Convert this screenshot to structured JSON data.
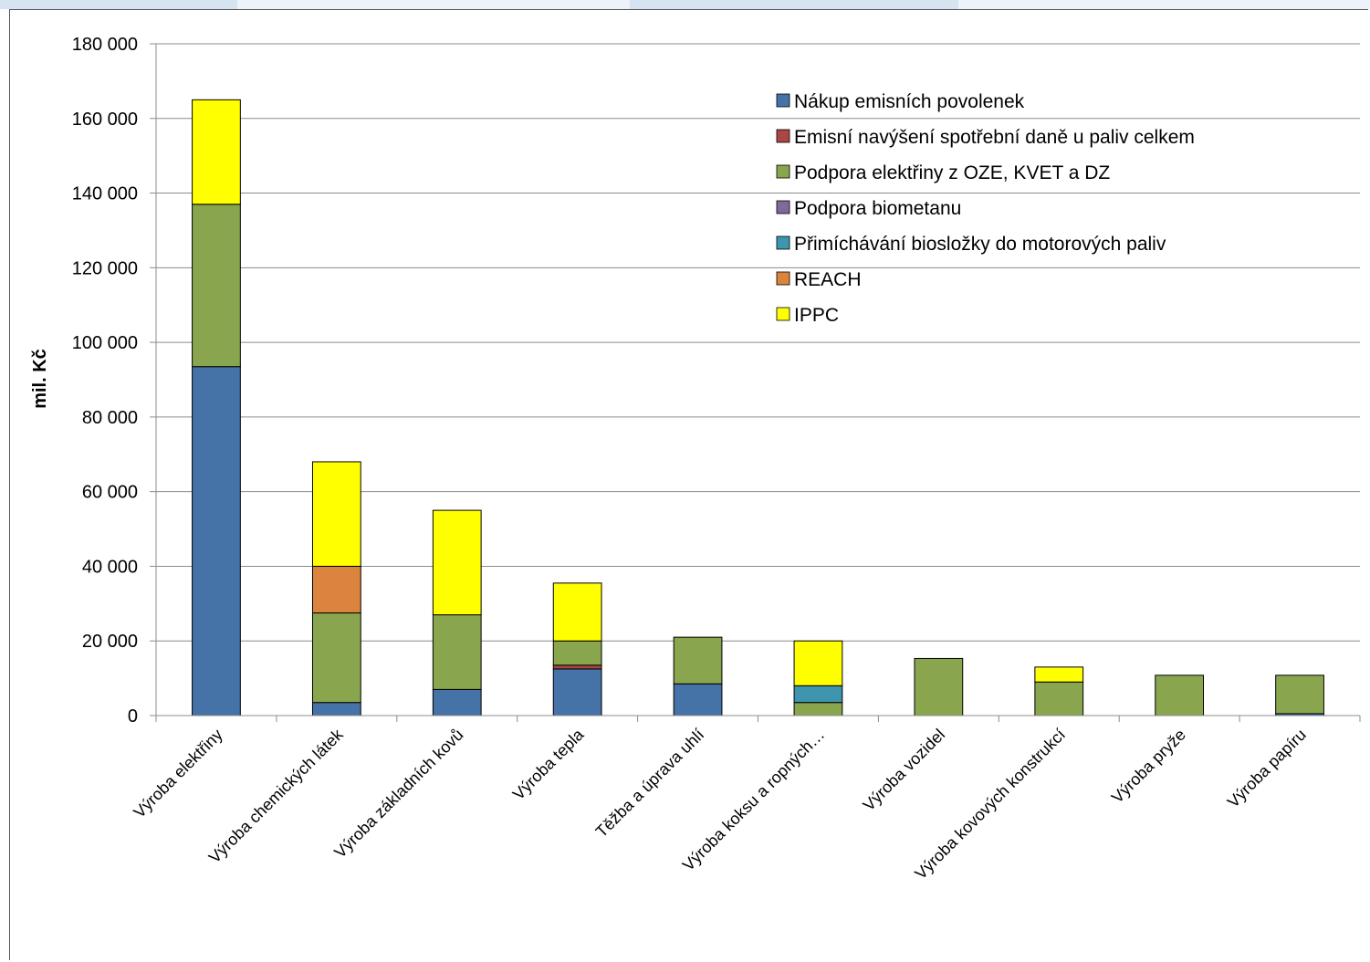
{
  "chart_data": {
    "type": "bar",
    "stacked": true,
    "ylabel": "mil. Kč",
    "ylim": [
      0,
      180000
    ],
    "yticks": [
      0,
      20000,
      40000,
      60000,
      80000,
      100000,
      120000,
      140000,
      160000,
      180000
    ],
    "ytick_labels": [
      "0",
      "20 000",
      "40 000",
      "60 000",
      "80 000",
      "100 000",
      "120 000",
      "140 000",
      "160 000",
      "180 000"
    ],
    "grid": true,
    "legend_position": "top-right",
    "categories": [
      "Výroba elektřiny",
      "Výroba chemických látek",
      "Výroba základních kovů",
      "Výroba tepla",
      "Těžba a úprava uhlí",
      "Výroba koksu a ropných…",
      "Výroba vozidel",
      "Výroba kovových konstrukcí",
      "Výroba pryže",
      "Výroba papíru"
    ],
    "series": [
      {
        "name": "Nákup emisních povolenek",
        "color": "#4572a7",
        "values": [
          93500,
          3500,
          7000,
          12500,
          8500,
          0,
          0,
          0,
          0,
          500
        ]
      },
      {
        "name": "Emisní navýšení spotřební daně u paliv celkem",
        "color": "#aa4643",
        "values": [
          0,
          0,
          0,
          1000,
          0,
          0,
          0,
          0,
          0,
          0
        ]
      },
      {
        "name": "Podpora elektřiny z OZE, KVET a DZ",
        "color": "#89a54e",
        "values": [
          43500,
          24000,
          20000,
          6500,
          12500,
          3500,
          15300,
          9000,
          10800,
          10300
        ]
      },
      {
        "name": "Podpora biometanu",
        "color": "#80699b",
        "values": [
          0,
          0,
          0,
          0,
          0,
          0,
          0,
          0,
          0,
          0
        ]
      },
      {
        "name": "Přimíchávání biosložky do motorových paliv",
        "color": "#3d96ae",
        "values": [
          0,
          0,
          0,
          0,
          0,
          4500,
          0,
          0,
          0,
          0
        ]
      },
      {
        "name": "REACH",
        "color": "#db843d",
        "values": [
          0,
          12500,
          0,
          0,
          0,
          0,
          0,
          0,
          0,
          0
        ]
      },
      {
        "name": "IPPC",
        "color": "#ffff00",
        "values": [
          28000,
          28000,
          28000,
          15500,
          0,
          12000,
          0,
          4000,
          0,
          0
        ]
      }
    ]
  }
}
